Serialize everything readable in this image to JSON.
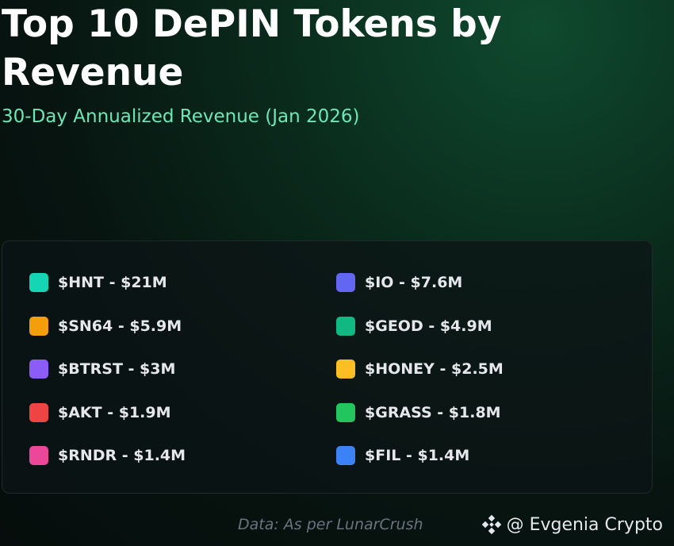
{
  "header": {
    "title": "Top 10 DePIN Tokens by Revenue",
    "subtitle": "30-Day Annualized Revenue (Jan 2026)"
  },
  "legend": {
    "items": [
      {
        "label": "$HNT - $21M",
        "color": "#14d6b4"
      },
      {
        "label": "$IO - $7.6M",
        "color": "#6366f1"
      },
      {
        "label": "$SN64 - $5.9M",
        "color": "#f59e0b"
      },
      {
        "label": "$GEOD - $4.9M",
        "color": "#10b981"
      },
      {
        "label": "$BTRST - $3M",
        "color": "#8b5cf6"
      },
      {
        "label": "$HONEY - $2.5M",
        "color": "#fbbf24"
      },
      {
        "label": "$AKT - $1.9M",
        "color": "#ef4444"
      },
      {
        "label": "$GRASS - $1.8M",
        "color": "#22c55e"
      },
      {
        "label": "$RNDR - $1.4M",
        "color": "#ec4899"
      },
      {
        "label": "$FIL - $1.4M",
        "color": "#3b82f6"
      }
    ]
  },
  "footer": {
    "source": "Data: As per LunarCrush",
    "credit": "@ Evgenia Crypto"
  }
}
